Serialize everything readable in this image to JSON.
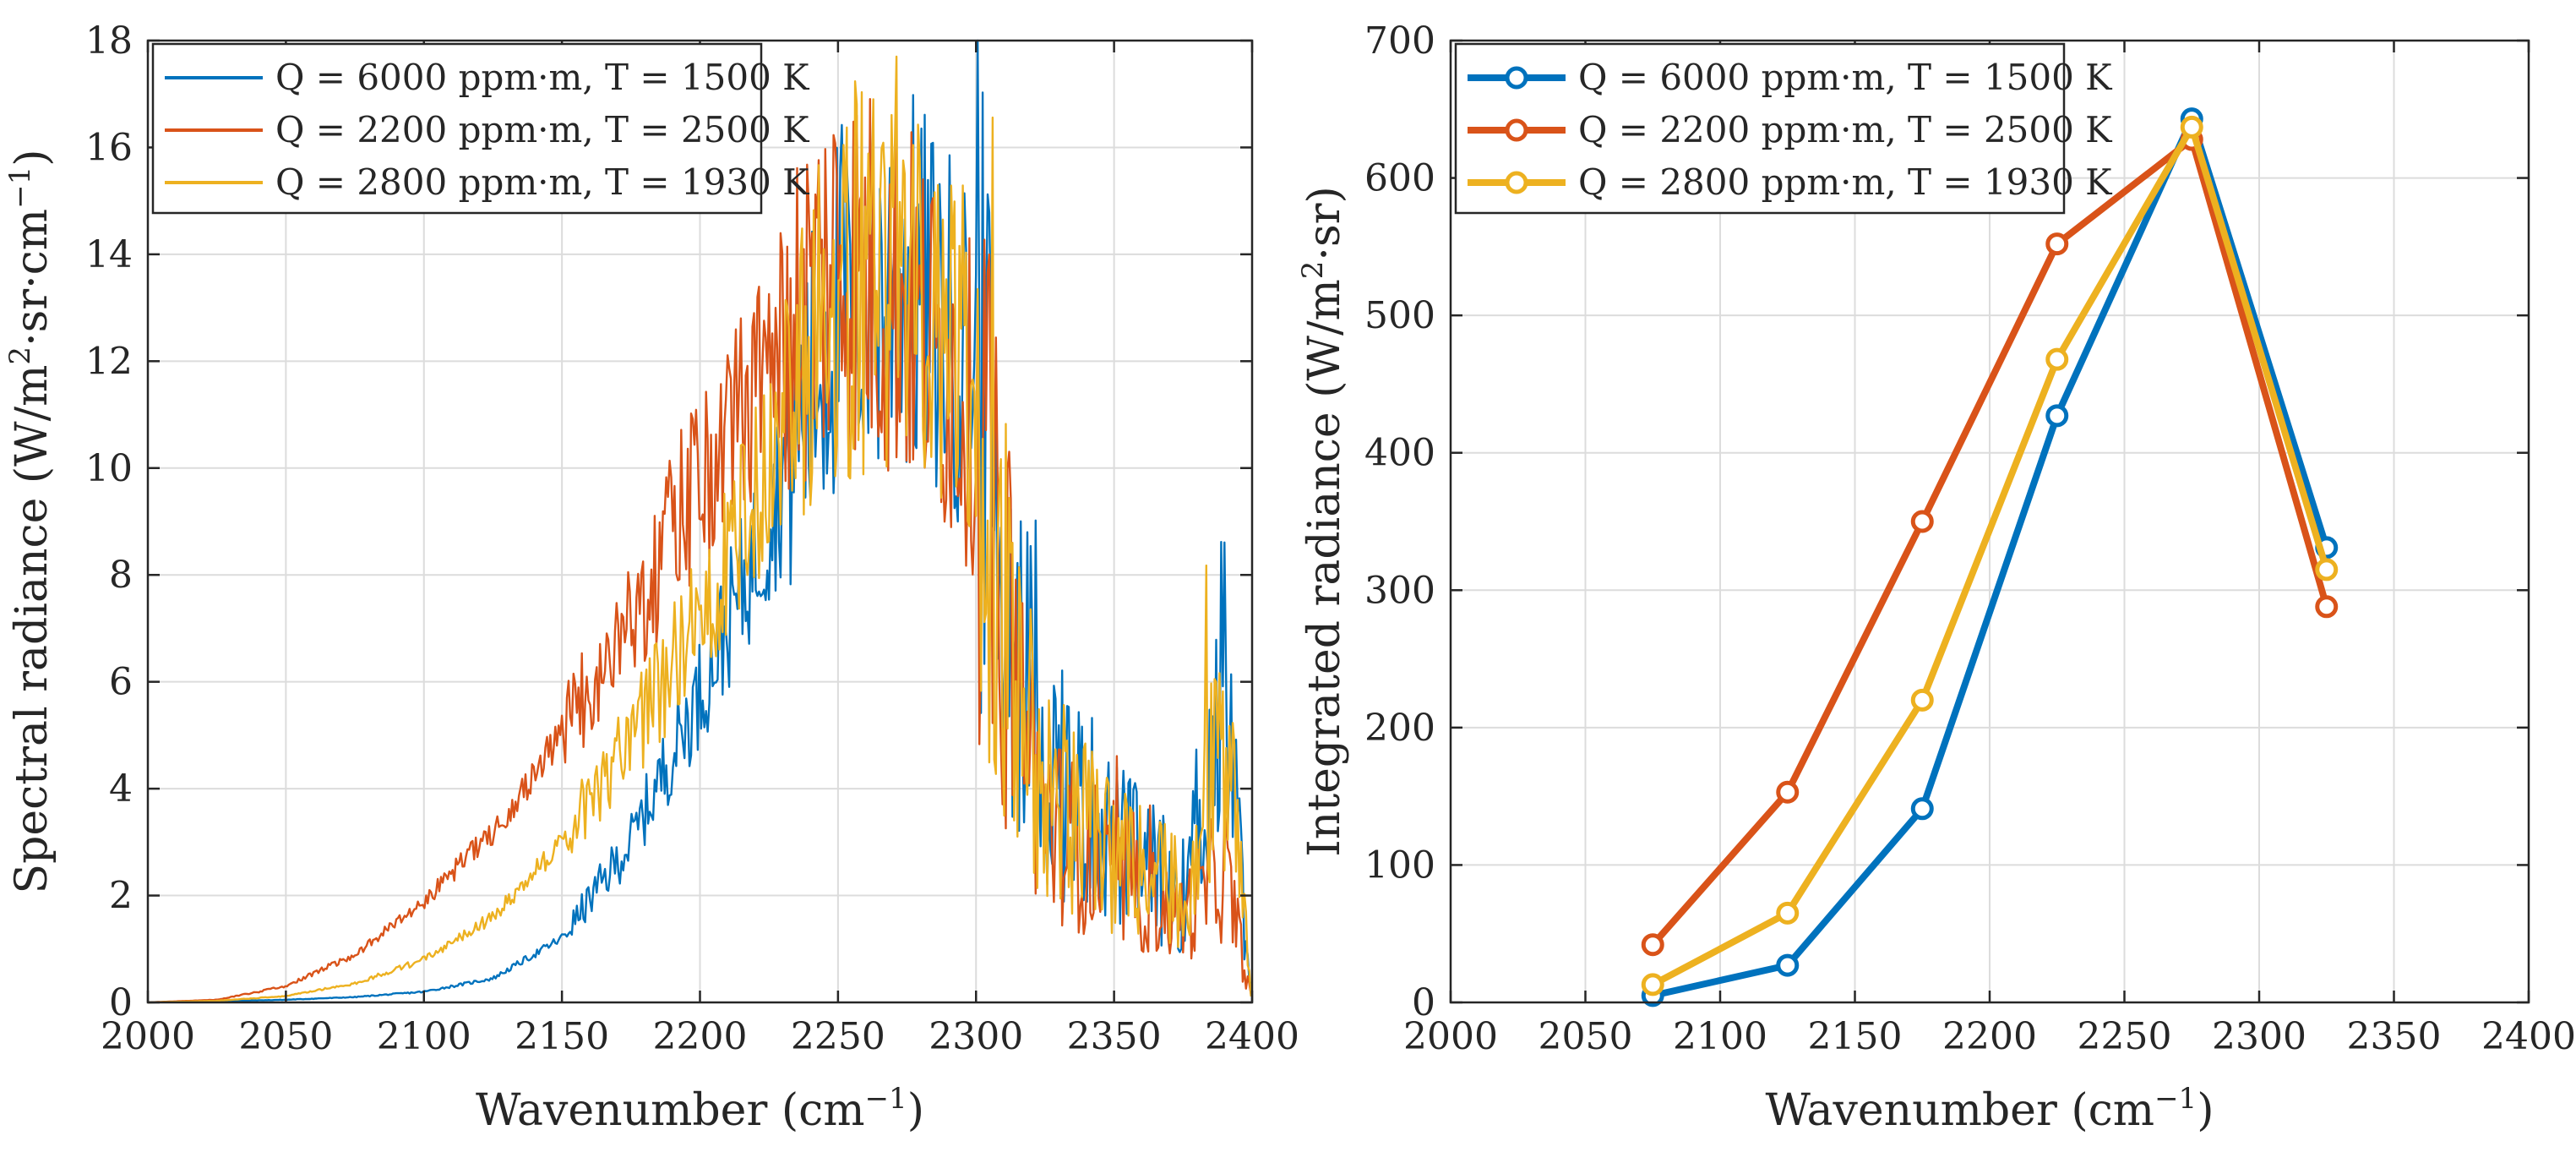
{
  "chart_data": [
    {
      "type": "line",
      "name": "spectral",
      "xlabel": "Wavenumber (cm",
      "xlabel_sup": "−1",
      "xlabel_end": ")",
      "ylabel_parts": [
        "Spectral radiance (W/m",
        "2",
        "·sr·cm",
        "−1",
        ")"
      ],
      "xlim": [
        2000,
        2400
      ],
      "ylim": [
        0,
        18
      ],
      "xticks": [
        "2000",
        "2050",
        "2100",
        "2150",
        "2200",
        "2250",
        "2300",
        "2350",
        "2400"
      ],
      "yticks": [
        "0",
        "2",
        "4",
        "6",
        "8",
        "10",
        "12",
        "14",
        "16",
        "18"
      ],
      "grid": true,
      "legend_position": "top-left",
      "series": [
        {
          "name": "Q = 6000 ppm·m, T = 1500 K",
          "color": "#0072BD",
          "x": [
            2000,
            2025,
            2050,
            2075,
            2100,
            2125,
            2150,
            2175,
            2200,
            2225,
            2250,
            2275,
            2300,
            2310,
            2325,
            2350,
            2375,
            2390,
            2400
          ],
          "y": [
            0,
            0.02,
            0.05,
            0.1,
            0.2,
            0.45,
            1.2,
            3.0,
            5.8,
            9.0,
            13.0,
            13.5,
            12.0,
            8.0,
            4.5,
            3.0,
            2.0,
            6.0,
            0
          ]
        },
        {
          "name": "Q = 2200 ppm·m, T = 2500 K",
          "color": "#D95319",
          "x": [
            2000,
            2025,
            2050,
            2075,
            2100,
            2125,
            2150,
            2175,
            2200,
            2225,
            2250,
            2275,
            2300,
            2310,
            2325,
            2350,
            2375,
            2390,
            2400
          ],
          "y": [
            0,
            0.05,
            0.3,
            0.9,
            1.9,
            3.2,
            5.0,
            7.2,
            9.8,
            12.0,
            14.0,
            13.0,
            11.0,
            7.0,
            3.5,
            2.2,
            1.6,
            2.5,
            0
          ]
        },
        {
          "name": "Q = 2800 ppm·m, T = 1930 K",
          "color": "#EDB120",
          "x": [
            2000,
            2025,
            2050,
            2075,
            2100,
            2125,
            2150,
            2175,
            2200,
            2225,
            2250,
            2275,
            2300,
            2310,
            2325,
            2350,
            2375,
            2390,
            2400
          ],
          "y": [
            0,
            0.03,
            0.12,
            0.35,
            0.8,
            1.6,
            3.0,
            4.9,
            7.2,
            10.0,
            13.5,
            14.0,
            11.5,
            7.5,
            4.0,
            2.8,
            2.0,
            5.0,
            0
          ]
        }
      ]
    },
    {
      "type": "line",
      "name": "integrated",
      "xlabel": "Wavenumber (cm",
      "xlabel_sup": "−1",
      "xlabel_end": ")",
      "ylabel_parts": [
        "Integrated radiance (W/m",
        "2",
        "·sr)"
      ],
      "xlim": [
        2000,
        2400
      ],
      "ylim": [
        0,
        700
      ],
      "xticks": [
        "2000",
        "2050",
        "2100",
        "2150",
        "2200",
        "2250",
        "2300",
        "2350",
        "2400"
      ],
      "yticks": [
        "0",
        "100",
        "200",
        "300",
        "400",
        "500",
        "600",
        "700"
      ],
      "grid": true,
      "legend_position": "top-left",
      "series": [
        {
          "name": "Q = 6000 ppm·m, T = 1500 K",
          "color": "#0072BD",
          "x": [
            2075,
            2125,
            2175,
            2225,
            2275,
            2325
          ],
          "y": [
            5,
            27,
            141,
            427,
            643,
            331
          ]
        },
        {
          "name": "Q = 2200 ppm·m, T = 2500 K",
          "color": "#D95319",
          "x": [
            2075,
            2125,
            2175,
            2225,
            2275,
            2325
          ],
          "y": [
            42,
            153,
            350,
            552,
            628,
            288
          ]
        },
        {
          "name": "Q = 2800 ppm·m, T = 1930 K",
          "color": "#EDB120",
          "x": [
            2075,
            2125,
            2175,
            2225,
            2275,
            2325
          ],
          "y": [
            13,
            65,
            220,
            468,
            637,
            315
          ]
        }
      ]
    }
  ]
}
